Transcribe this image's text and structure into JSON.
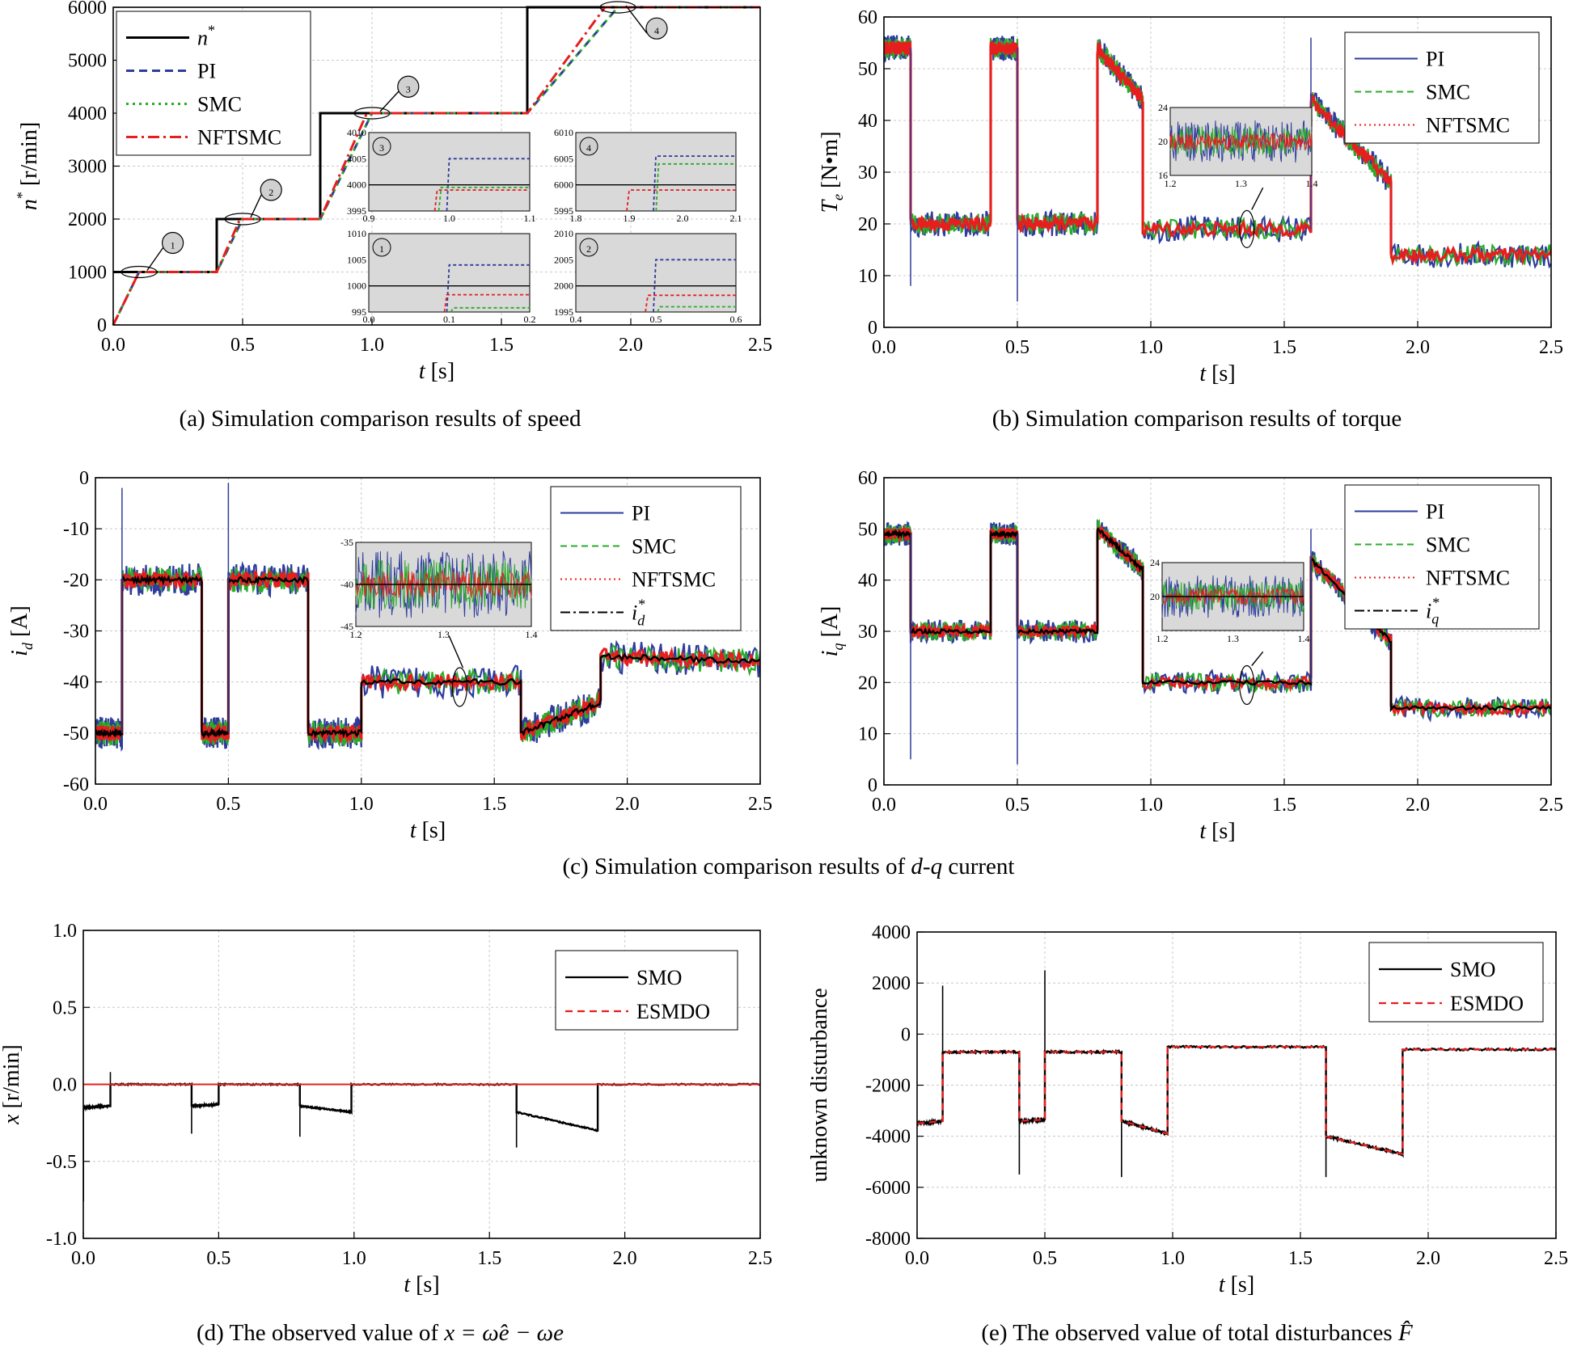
{
  "figure": {
    "captions": {
      "a": "(a) Simulation comparison results of speed",
      "b": "(b) Simulation comparison results of torque",
      "c_prefix": "(c) Simulation comparison results of ",
      "c_italic": "d-q",
      "c_suffix": " current",
      "d_prefix": "(d) The observed value of ",
      "d_math": "x = ω̂e − ωe",
      "e_prefix": "(e) The observed value of total disturbances ",
      "e_math": "F̂"
    },
    "colors": {
      "ref": "#000000",
      "pi": "#2e3c9c",
      "smc": "#2bab2b",
      "nftsmc": "#e61e1e",
      "grid": "#c8c8c8",
      "inset_bg": "#d9d9d9"
    }
  },
  "chart_data": [
    {
      "id": "a",
      "type": "line",
      "title": "(a) Simulation comparison results of speed",
      "xlabel": "t [s]",
      "ylabel": "n* [r/min]",
      "xlim": [
        0,
        2.5
      ],
      "ylim": [
        0,
        6000
      ],
      "xticks": [
        "0.0",
        "0.5",
        "1.0",
        "1.5",
        "2.0",
        "2.5"
      ],
      "yticks": [
        "0",
        "1000",
        "2000",
        "3000",
        "4000",
        "5000",
        "6000"
      ],
      "legend": [
        "n*",
        "PI",
        "SMC",
        "NFTSMC"
      ],
      "annotations": [
        "1",
        "2",
        "3",
        "4"
      ],
      "series": [
        {
          "name": "n*",
          "x": [
            0,
            0.4,
            0.4,
            0.8,
            0.8,
            1.6,
            1.6,
            2.5
          ],
          "y": [
            1000,
            1000,
            2000,
            2000,
            4000,
            4000,
            6000,
            6000
          ]
        },
        {
          "name": "PI",
          "x": [
            0,
            0.1,
            0.4,
            0.5,
            0.8,
            1.0,
            1.6,
            1.95,
            2.5
          ],
          "y": [
            0,
            1000,
            1000,
            2000,
            2000,
            4000,
            4000,
            6000,
            6000
          ]
        },
        {
          "name": "SMC",
          "x": [
            0,
            0.1,
            0.4,
            0.5,
            0.8,
            1.0,
            1.6,
            1.95,
            2.5
          ],
          "y": [
            0,
            1000,
            1000,
            2000,
            2000,
            4000,
            4000,
            6000,
            6000
          ]
        },
        {
          "name": "NFTSMC",
          "x": [
            0,
            0.1,
            0.4,
            0.49,
            0.8,
            0.98,
            1.6,
            1.9,
            2.5
          ],
          "y": [
            0,
            1000,
            1000,
            2000,
            2000,
            4000,
            4000,
            6000,
            6000
          ]
        }
      ],
      "insets": [
        {
          "label": "3",
          "xticks": [
            "0.9",
            "1.0",
            "1.1"
          ],
          "yticks": [
            "3995",
            "4000",
            "4005",
            "4010"
          ],
          "xlim": [
            0.9,
            1.1
          ],
          "ylim": [
            3995,
            4010
          ],
          "ref": 4000,
          "curves": [
            {
              "name": "PI",
              "tstep": 1.0,
              "level": 4005
            },
            {
              "name": "SMC",
              "tstep": 0.99,
              "level": 3999.5
            },
            {
              "name": "NFTSMC",
              "tstep": 0.985,
              "level": 3999
            }
          ]
        },
        {
          "label": "4",
          "xticks": [
            "1.8",
            "1.9",
            "2.0",
            "2.1"
          ],
          "yticks": [
            "5995",
            "6000",
            "6005",
            "6010"
          ],
          "xlim": [
            1.8,
            2.1
          ],
          "ylim": [
            5995,
            6010
          ],
          "ref": 6000,
          "curves": [
            {
              "name": "PI",
              "tstep": 1.95,
              "level": 6005.5
            },
            {
              "name": "SMC",
              "tstep": 1.955,
              "level": 6004
            },
            {
              "name": "NFTSMC",
              "tstep": 1.9,
              "level": 5999
            }
          ]
        },
        {
          "label": "1",
          "xticks": [
            "0.0",
            "0.1",
            "0.2"
          ],
          "yticks": [
            "995",
            "1000",
            "1005",
            "1010"
          ],
          "xlim": [
            0,
            0.2
          ],
          "ylim": [
            995,
            1010
          ],
          "ref": 1000,
          "curves": [
            {
              "name": "PI",
              "tstep": 0.1,
              "level": 1004
            },
            {
              "name": "SMC",
              "tstep": 0.105,
              "level": 995.8
            },
            {
              "name": "NFTSMC",
              "tstep": 0.097,
              "level": 998.3
            }
          ]
        },
        {
          "label": "2",
          "xticks": [
            "0.4",
            "0.5",
            "0.6"
          ],
          "yticks": [
            "1995",
            "2000",
            "2005",
            "2010"
          ],
          "xlim": [
            0.4,
            0.6
          ],
          "ylim": [
            1995,
            2010
          ],
          "ref": 2000,
          "curves": [
            {
              "name": "PI",
              "tstep": 0.5,
              "level": 2005
            },
            {
              "name": "SMC",
              "tstep": 0.505,
              "level": 1996
            },
            {
              "name": "NFTSMC",
              "tstep": 0.49,
              "level": 1998.2
            }
          ]
        }
      ]
    },
    {
      "id": "b",
      "type": "line",
      "title": "(b) Simulation comparison results of torque",
      "xlabel": "t [s]",
      "ylabel": "Te [N•m]",
      "xlim": [
        0,
        2.5
      ],
      "ylim": [
        0,
        60
      ],
      "xticks": [
        "0.0",
        "0.5",
        "1.0",
        "1.5",
        "2.0",
        "2.5"
      ],
      "yticks": [
        "0",
        "10",
        "20",
        "30",
        "40",
        "50",
        "60"
      ],
      "legend": [
        "PI",
        "SMC",
        "NFTSMC"
      ],
      "segments": [
        [
          0,
          0.1,
          54,
          54
        ],
        [
          0.1,
          0.4,
          20,
          20
        ],
        [
          0.4,
          0.5,
          54,
          54
        ],
        [
          0.5,
          0.8,
          20,
          20
        ],
        [
          0.8,
          0.97,
          54,
          44
        ],
        [
          0.97,
          1.6,
          19,
          19
        ],
        [
          1.6,
          1.9,
          44,
          28
        ],
        [
          1.9,
          2.5,
          14,
          14
        ]
      ],
      "spikes": [
        [
          0.1,
          8
        ],
        [
          0.5,
          5
        ],
        [
          1.6,
          56
        ]
      ],
      "inset": {
        "xticks": [
          "1.2",
          "1.3",
          "1.4"
        ],
        "yticks": [
          "16",
          "20",
          "24"
        ],
        "ylim": [
          16,
          24
        ],
        "center": 20
      }
    },
    {
      "id": "c1",
      "type": "line",
      "title": "(c) Simulation comparison results of d-q current",
      "xlabel": "t [s]",
      "ylabel": "id [A]",
      "xlim": [
        0,
        2.5
      ],
      "ylim": [
        -60,
        0
      ],
      "xticks": [
        "0.0",
        "0.5",
        "1.0",
        "1.5",
        "2.0",
        "2.5"
      ],
      "yticks": [
        "0",
        "-10",
        "-20",
        "-30",
        "-40",
        "-50",
        "-60"
      ],
      "legend": [
        "PI",
        "SMC",
        "NFTSMC",
        "id*"
      ],
      "segments": [
        [
          0,
          0.1,
          -50,
          -50
        ],
        [
          0.1,
          0.4,
          -20,
          -20
        ],
        [
          0.4,
          0.5,
          -50,
          -50
        ],
        [
          0.5,
          0.8,
          -20,
          -20
        ],
        [
          0.8,
          1.0,
          -50,
          -50
        ],
        [
          1.0,
          1.6,
          -40,
          -40
        ],
        [
          1.6,
          1.9,
          -50,
          -44
        ],
        [
          1.9,
          2.5,
          -35,
          -36
        ]
      ],
      "spikes": [
        [
          0.1,
          -2
        ],
        [
          0.5,
          -1
        ]
      ],
      "inset": {
        "xticks": [
          "1.2",
          "1.3",
          "1.4"
        ],
        "yticks": [
          "-35",
          "-40",
          "-45"
        ],
        "ylim": [
          -45,
          -35
        ],
        "center": -40
      }
    },
    {
      "id": "c2",
      "type": "line",
      "xlabel": "t [s]",
      "ylabel": "iq [A]",
      "xlim": [
        0,
        2.5
      ],
      "ylim": [
        0,
        60
      ],
      "xticks": [
        "0.0",
        "0.5",
        "1.0",
        "1.5",
        "2.0",
        "2.5"
      ],
      "yticks": [
        "0",
        "10",
        "20",
        "30",
        "40",
        "50",
        "60"
      ],
      "legend": [
        "PI",
        "SMC",
        "NFTSMC",
        "iq*"
      ],
      "segments": [
        [
          0,
          0.1,
          49,
          49
        ],
        [
          0.1,
          0.4,
          30,
          30
        ],
        [
          0.4,
          0.5,
          49,
          49
        ],
        [
          0.5,
          0.8,
          30,
          30
        ],
        [
          0.8,
          0.97,
          50,
          42
        ],
        [
          0.97,
          1.6,
          20,
          20
        ],
        [
          1.6,
          1.9,
          44,
          28
        ],
        [
          1.9,
          2.5,
          15,
          15
        ]
      ],
      "spikes": [
        [
          0.1,
          5
        ],
        [
          0.5,
          4
        ],
        [
          1.6,
          50
        ]
      ],
      "inset": {
        "xticks": [
          "1.2",
          "1.3",
          "1.4"
        ],
        "yticks": [
          "20",
          "24"
        ],
        "ylim": [
          16,
          24
        ],
        "center": 20
      }
    },
    {
      "id": "d",
      "type": "line",
      "title": "(d) The observed value of x = ω̂e − ωe",
      "xlabel": "t [s]",
      "ylabel": "x [r/min]",
      "xlim": [
        0,
        2.5
      ],
      "ylim": [
        -1.0,
        1.0
      ],
      "xticks": [
        "0.0",
        "0.5",
        "1.0",
        "1.5",
        "2.0",
        "2.5"
      ],
      "yticks": [
        "1.0",
        "0.5",
        "0.0",
        "-0.5",
        "-1.0"
      ],
      "legend": [
        "SMO",
        "ESMDO"
      ],
      "segments": [
        [
          0,
          0.1,
          -0.15,
          -0.14
        ],
        [
          0.1,
          0.4,
          0,
          0
        ],
        [
          0.4,
          0.5,
          -0.14,
          -0.13
        ],
        [
          0.5,
          0.8,
          0,
          0
        ],
        [
          0.8,
          0.99,
          -0.14,
          -0.18
        ],
        [
          0.99,
          1.6,
          0,
          0
        ],
        [
          1.6,
          1.9,
          -0.18,
          -0.3
        ],
        [
          1.9,
          2.5,
          0,
          0
        ]
      ],
      "spikes": [
        [
          0.1,
          0.08
        ],
        [
          0.4,
          -0.32
        ],
        [
          0.8,
          -0.34
        ],
        [
          1.6,
          -0.41
        ]
      ]
    },
    {
      "id": "e",
      "type": "line",
      "title": "(e) The observed value of total disturbances F̂",
      "xlabel": "t [s]",
      "ylabel": "unknown disturbance",
      "xlim": [
        0,
        2.5
      ],
      "ylim": [
        -8000,
        4000
      ],
      "xticks": [
        "0.0",
        "0.5",
        "1.0",
        "1.5",
        "2.0",
        "2.5"
      ],
      "yticks": [
        "4000",
        "2000",
        "0",
        "-2000",
        "-4000",
        "-6000",
        "-8000"
      ],
      "legend": [
        "SMO",
        "ESMDO"
      ],
      "segments": [
        [
          0,
          0.1,
          -3500,
          -3400
        ],
        [
          0.1,
          0.4,
          -700,
          -700
        ],
        [
          0.4,
          0.5,
          -3400,
          -3350
        ],
        [
          0.5,
          0.8,
          -700,
          -700
        ],
        [
          0.8,
          0.98,
          -3400,
          -3900
        ],
        [
          0.98,
          1.6,
          -500,
          -500
        ],
        [
          1.6,
          1.9,
          -4000,
          -4700
        ],
        [
          1.9,
          2.5,
          -600,
          -600
        ]
      ],
      "spikes": [
        [
          0.1,
          1900
        ],
        [
          0.4,
          -5500
        ],
        [
          0.5,
          2500
        ],
        [
          0.8,
          -5600
        ],
        [
          1.6,
          -5600
        ]
      ]
    }
  ]
}
